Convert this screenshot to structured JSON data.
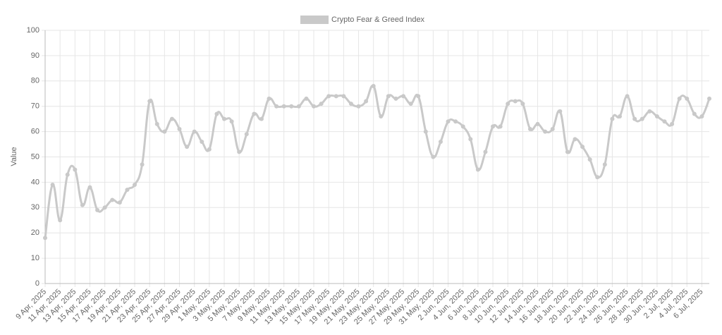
{
  "chart_data": {
    "type": "line",
    "y_label": "Value",
    "categories": [
      "9 Apr, 2025",
      null,
      "11 Apr, 2025",
      null,
      "13 Apr, 2025",
      null,
      "15 Apr, 2025",
      null,
      "17 Apr, 2025",
      null,
      "19 Apr, 2025",
      null,
      "21 Apr, 2025",
      null,
      "23 Apr, 2025",
      null,
      "25 Apr, 2025",
      null,
      "27 Apr, 2025",
      null,
      "29 Apr, 2025",
      null,
      "1 May, 2025",
      null,
      "3 May, 2025",
      null,
      "5 May, 2025",
      null,
      "7 May, 2025",
      null,
      "9 May, 2025",
      null,
      "11 May, 2025",
      null,
      "13 May, 2025",
      null,
      "15 May, 2025",
      null,
      "17 May, 2025",
      null,
      "19 May, 2025",
      null,
      "21 May, 2025",
      null,
      "23 May, 2025",
      null,
      "25 May, 2025",
      null,
      "27 May, 2025",
      null,
      "29 May, 2025",
      null,
      "31 May, 2025",
      null,
      "2 Jun, 2025",
      null,
      "4 Jun, 2025",
      null,
      "6 Jun, 2025",
      null,
      "8 Jun, 2025",
      null,
      "10 Jun, 2025",
      null,
      "12 Jun, 2025",
      null,
      "14 Jun, 2025",
      null,
      "16 Jun, 2025",
      null,
      "18 Jun, 2025",
      null,
      "20 Jun, 2025",
      null,
      "22 Jun, 2025",
      null,
      "24 Jun, 2025",
      null,
      "26 Jun, 2025",
      null,
      "28 Jun, 2025",
      null,
      "30 Jun, 2025",
      null,
      "2 Jul, 2025",
      null,
      "4 Jul, 2025",
      null,
      "6 Jul, 2025",
      null
    ],
    "series": [
      {
        "name": "Crypto Fear & Greed Index",
        "color": "#c9c9c9",
        "values": [
          18,
          39,
          25,
          43,
          45,
          31,
          38,
          29,
          30,
          33,
          32,
          37,
          39,
          47,
          72,
          63,
          60,
          65,
          61,
          54,
          60,
          56,
          53,
          67,
          65,
          64,
          52,
          59,
          67,
          65,
          73,
          70,
          70,
          70,
          70,
          73,
          70,
          71,
          74,
          74,
          74,
          71,
          70,
          72,
          78,
          66,
          74,
          73,
          74,
          71,
          74,
          60,
          50,
          56,
          64,
          64,
          62,
          57,
          45,
          52,
          62,
          62,
          71,
          72,
          71,
          61,
          63,
          60,
          61,
          68,
          52,
          57,
          54,
          49,
          42,
          47,
          65,
          66,
          74,
          65,
          65,
          68,
          66,
          64,
          63,
          73,
          73,
          67,
          66,
          73
        ]
      }
    ],
    "ylim": [
      0,
      100
    ],
    "yticks": [
      0,
      10,
      20,
      30,
      40,
      50,
      60,
      70,
      80,
      90,
      100
    ],
    "grid": true
  }
}
